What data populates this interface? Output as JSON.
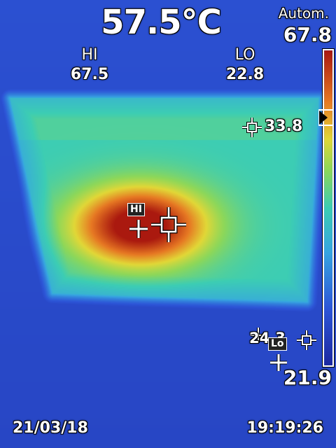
{
  "camera": {
    "center_temperature": "57.5°C",
    "range_mode": "Autom.",
    "scale_max": "67.8",
    "scale_min": "21.9",
    "hi_label": "HI",
    "hi_value": "67.5",
    "lo_label": "LO",
    "lo_value": "22.8",
    "spot_1_value": "33.8",
    "spot_2_value": "24.3",
    "hi_marker_tag": "HI",
    "lo_marker_tag": "Lo",
    "date": "21/03/18",
    "time": "19:19:26"
  },
  "icons": {
    "center_spot": "crosshair-square-icon",
    "hi_marker": "plus-marker-icon",
    "lo_marker": "plus-marker-icon",
    "spot_meter": "spot-crosshair-icon",
    "scale_pointer": "triangle-pointer-icon"
  },
  "palette": {
    "background": "#1f2fa6",
    "cool": "#3b5fe0",
    "mid": "#35c8c0",
    "warm": "#e8d23a",
    "hot": "#b51e10"
  }
}
